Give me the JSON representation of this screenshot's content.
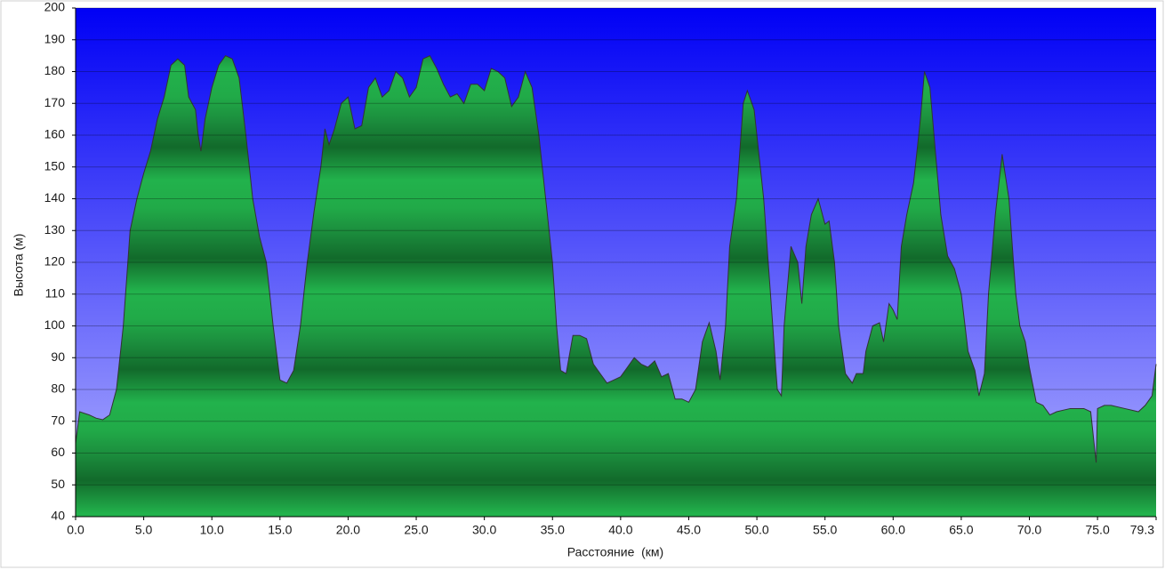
{
  "chart_data": {
    "type": "area",
    "xlabel": "Расстояние  (км)",
    "ylabel": "Высота (м)",
    "color": "#1faa48",
    "line_color": "#333333",
    "grid": true,
    "xlim": [
      0,
      79.3
    ],
    "ylim": [
      40,
      200
    ],
    "xticks": [
      {
        "value": 0,
        "label": "0.0"
      },
      {
        "value": 5,
        "label": "5.0"
      },
      {
        "value": 10,
        "label": "10.0"
      },
      {
        "value": 15,
        "label": "15.0"
      },
      {
        "value": 20,
        "label": "20.0"
      },
      {
        "value": 25,
        "label": "25.0"
      },
      {
        "value": 30,
        "label": "30.0"
      },
      {
        "value": 35,
        "label": "35.0"
      },
      {
        "value": 40,
        "label": "40.0"
      },
      {
        "value": 45,
        "label": "45.0"
      },
      {
        "value": 50,
        "label": "50.0"
      },
      {
        "value": 55,
        "label": "55.0"
      },
      {
        "value": 60,
        "label": "60.0"
      },
      {
        "value": 65,
        "label": "65.0"
      },
      {
        "value": 70,
        "label": "70.0"
      },
      {
        "value": 75,
        "label": "75.0"
      },
      79.3
    ],
    "yticks": [
      40,
      50,
      60,
      70,
      80,
      90,
      100,
      110,
      120,
      130,
      140,
      150,
      160,
      170,
      180,
      190,
      200
    ],
    "x": [
      0,
      0.3,
      1,
      1.5,
      2,
      2.5,
      3,
      3.5,
      4,
      4.5,
      5,
      5.5,
      6,
      6.5,
      7,
      7.5,
      8,
      8.3,
      8.8,
      9,
      9.2,
      9.5,
      10,
      10.5,
      11,
      11.5,
      12,
      12.5,
      13,
      13.5,
      14,
      14.5,
      15,
      15.5,
      16,
      16.5,
      17,
      17.5,
      18,
      18.3,
      18.6,
      19,
      19.5,
      20,
      20.5,
      21,
      21.5,
      22,
      22.5,
      23,
      23.5,
      24,
      24.5,
      25,
      25.5,
      26,
      26.5,
      27,
      27.5,
      28,
      28.5,
      29,
      29.5,
      30,
      30.5,
      31,
      31.5,
      32,
      32.5,
      33,
      33.5,
      34,
      34.5,
      35,
      35.3,
      35.6,
      36,
      36.5,
      37,
      37.5,
      38,
      38.5,
      39,
      39.5,
      40,
      40.5,
      41,
      41.5,
      42,
      42.5,
      43,
      43.5,
      44,
      44.5,
      45,
      45.5,
      46,
      46.5,
      47,
      47.3,
      47.7,
      48,
      48.5,
      49,
      49.3,
      49.8,
      50,
      50.5,
      51,
      51.5,
      51.8,
      52,
      52.5,
      53,
      53.3,
      53.6,
      54,
      54.5,
      55,
      55.3,
      55.7,
      56,
      56.5,
      57,
      57.3,
      57.8,
      58,
      58.5,
      59,
      59.3,
      59.7,
      60,
      60.3,
      60.6,
      61,
      61.5,
      62,
      62.3,
      62.7,
      63,
      63.5,
      64,
      64.5,
      65,
      65.5,
      66,
      66.3,
      66.7,
      67,
      67.5,
      68,
      68.5,
      69,
      69.3,
      69.7,
      70,
      70.5,
      71,
      71.5,
      72,
      73,
      74,
      74.5,
      74.9,
      75,
      75.5,
      76,
      77,
      78,
      78.5,
      79,
      79.3
    ],
    "values": [
      63,
      73,
      72,
      71,
      70.5,
      72,
      80,
      100,
      130,
      140,
      148,
      155,
      165,
      172,
      182,
      184,
      182,
      172,
      168,
      160,
      155,
      165,
      175,
      182,
      185,
      184,
      178,
      160,
      140,
      128,
      120,
      100,
      83,
      82,
      86,
      100,
      120,
      136,
      150,
      162,
      157,
      162,
      170,
      172,
      162,
      163,
      175,
      178,
      172,
      174,
      180,
      178,
      172,
      175,
      184,
      185,
      181,
      176,
      172,
      173,
      170,
      176,
      176,
      174,
      181,
      180,
      178,
      169,
      172,
      180,
      175,
      160,
      140,
      120,
      100,
      86,
      85,
      97,
      97,
      96,
      88,
      85,
      82,
      83,
      84,
      87,
      90,
      88,
      87,
      89,
      84,
      85,
      77,
      77,
      76,
      80,
      95,
      101,
      92,
      83,
      100,
      125,
      140,
      170,
      174,
      168,
      160,
      140,
      110,
      80,
      78,
      100,
      125,
      120,
      107,
      125,
      135,
      140,
      132,
      133,
      120,
      100,
      85,
      82,
      85,
      85,
      92,
      100,
      101,
      95,
      107,
      105,
      102,
      125,
      135,
      145,
      165,
      180,
      175,
      160,
      135,
      122,
      118,
      110,
      92,
      86,
      78,
      85,
      110,
      135,
      154,
      140,
      110,
      100,
      95,
      87,
      76,
      75,
      72,
      73,
      74,
      74,
      73,
      57,
      74,
      75,
      75,
      74,
      73,
      75,
      78,
      88
    ]
  }
}
